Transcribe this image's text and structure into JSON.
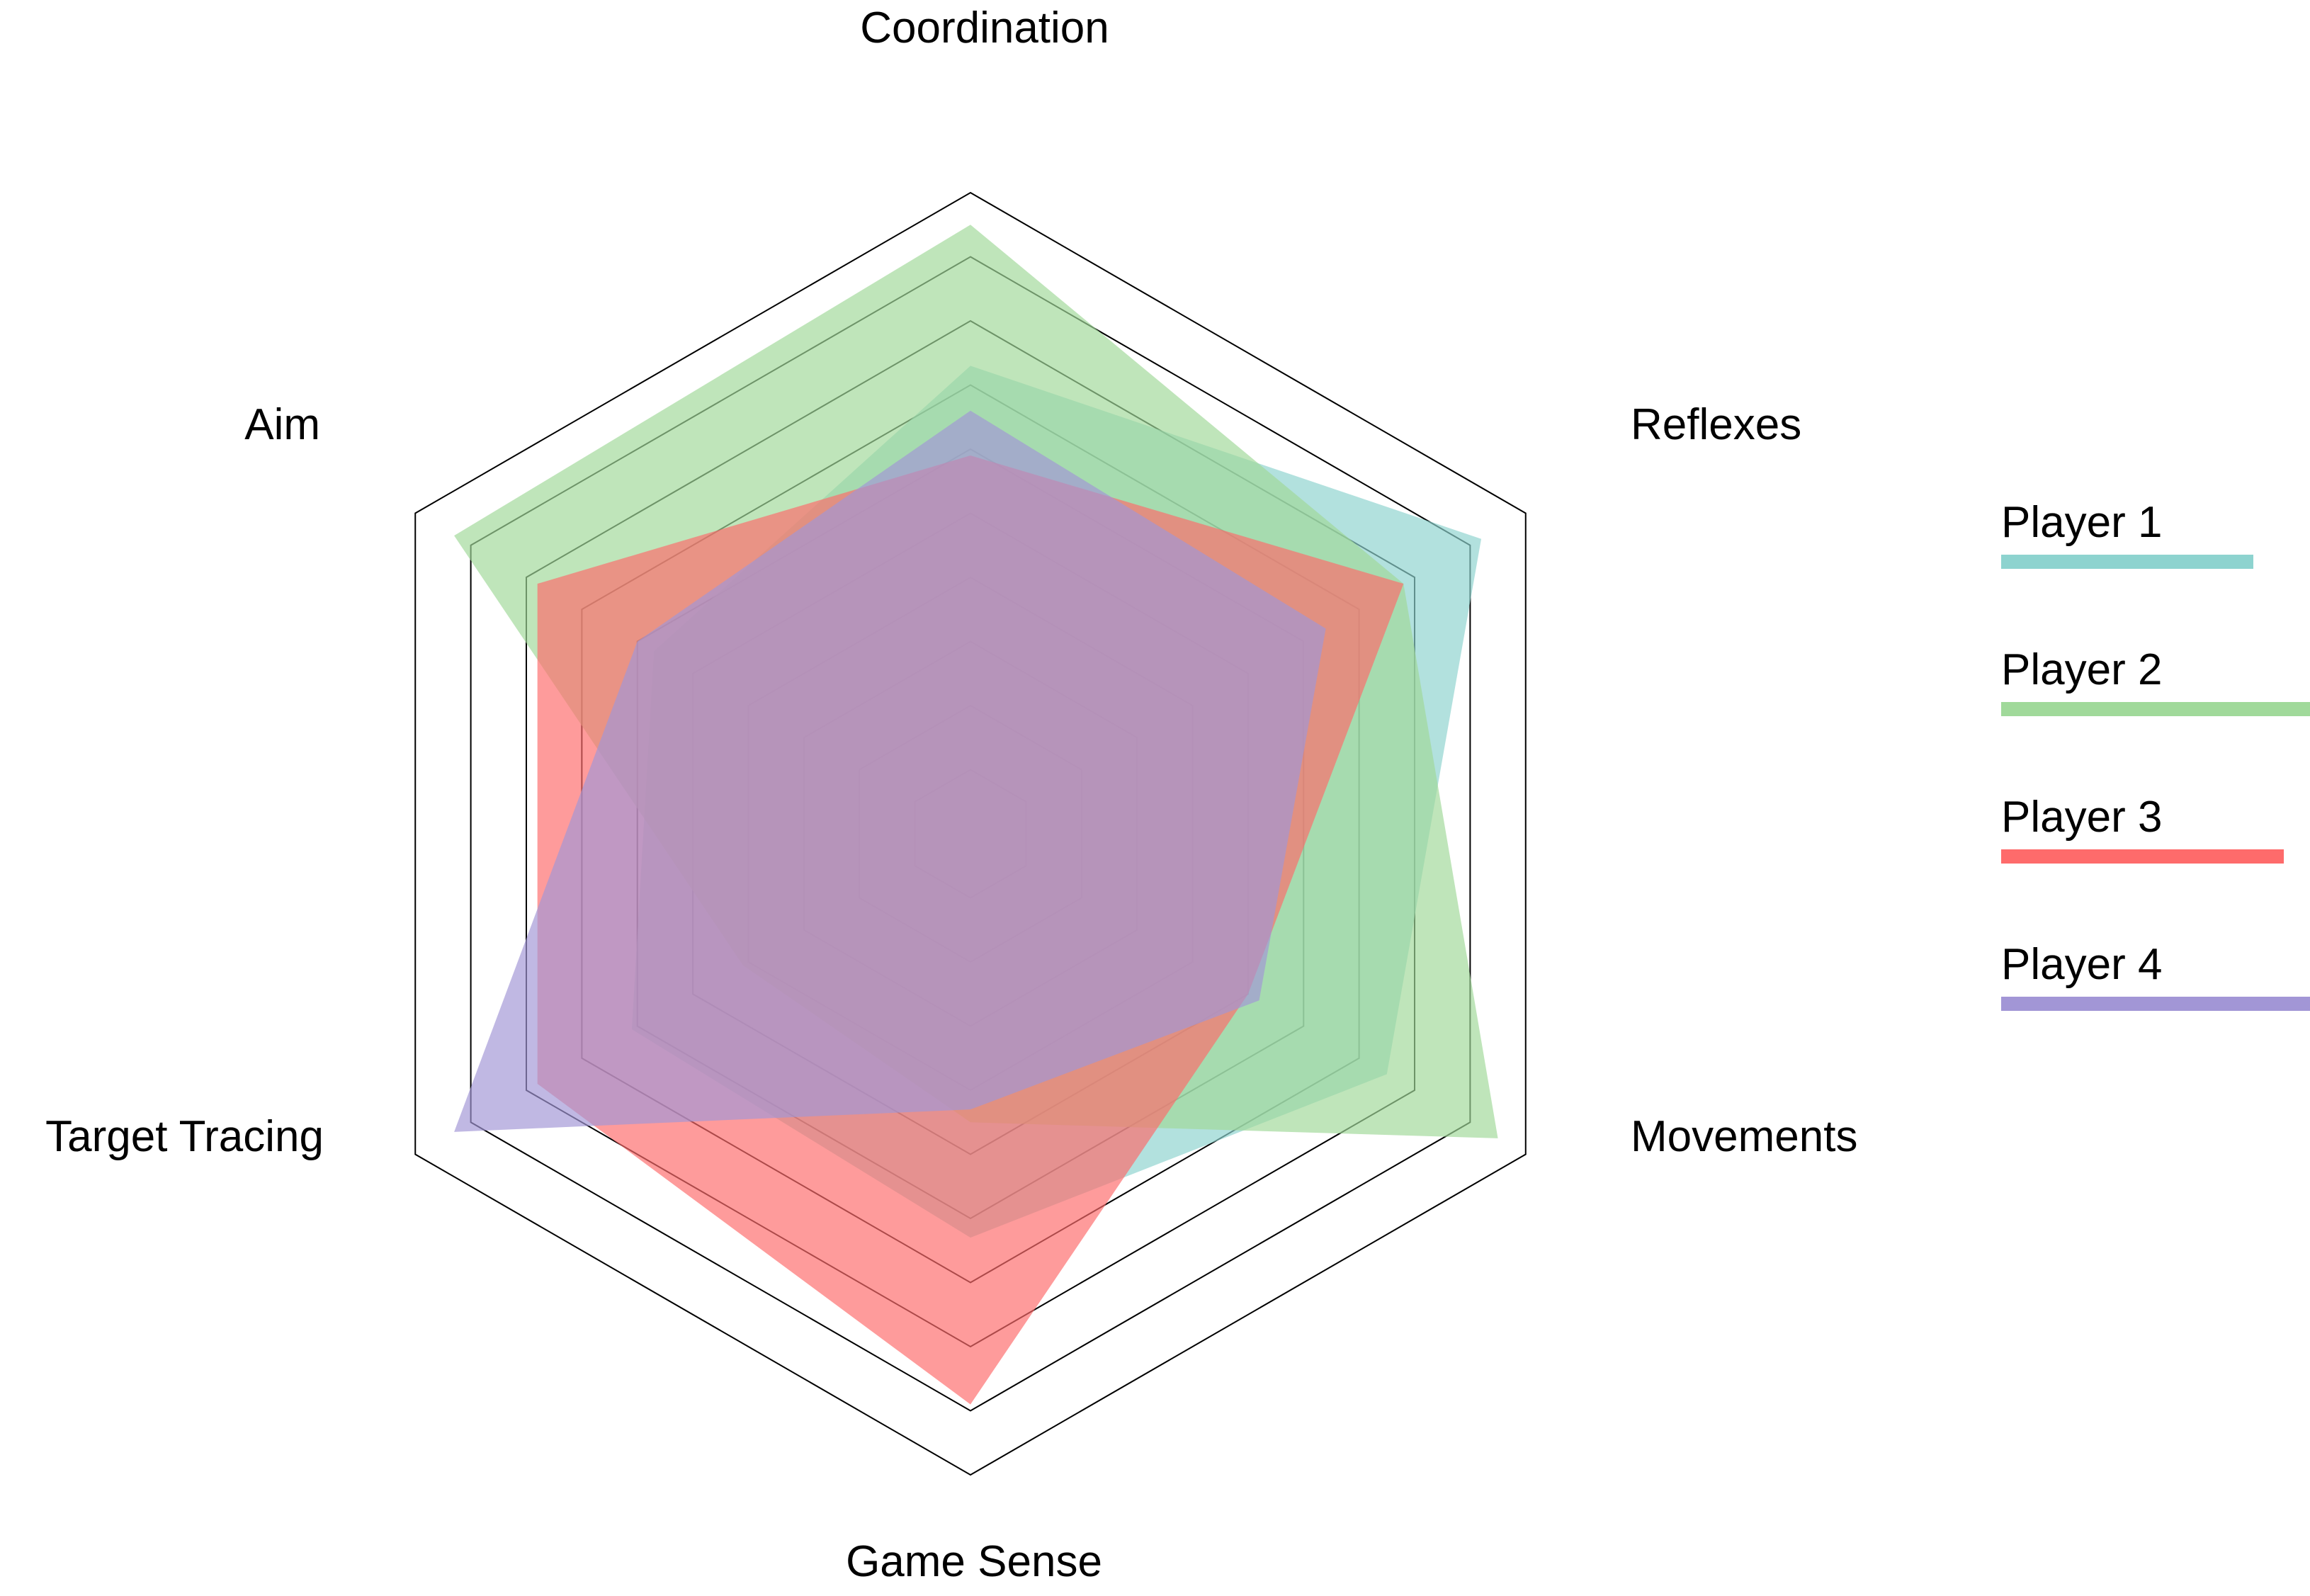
{
  "chart_data": {
    "type": "radar",
    "axes": [
      "Coordination",
      "Reflexes",
      "Movements",
      "Game Sense",
      "Target Tracing",
      "Aim"
    ],
    "rlim": [
      0,
      10
    ],
    "rings": [
      1,
      2,
      3,
      4,
      5,
      6,
      7,
      8,
      9,
      10
    ],
    "series": [
      {
        "name": "Player 1",
        "color": "#8dd3cf",
        "values": [
          7.3,
          9.2,
          7.5,
          6.3,
          6.1,
          5.7
        ]
      },
      {
        "name": "Player 2",
        "color": "#a0d99a",
        "values": [
          9.5,
          7.8,
          9.5,
          4.5,
          4.1,
          9.3
        ]
      },
      {
        "name": "Player 3",
        "color": "#fe6b6b",
        "values": [
          5.9,
          7.8,
          5.0,
          8.9,
          7.8,
          7.8
        ]
      },
      {
        "name": "Player 4",
        "color": "#a296d6",
        "values": [
          6.6,
          6.4,
          5.2,
          4.3,
          9.3,
          6.0
        ]
      }
    ],
    "legend": "right"
  }
}
